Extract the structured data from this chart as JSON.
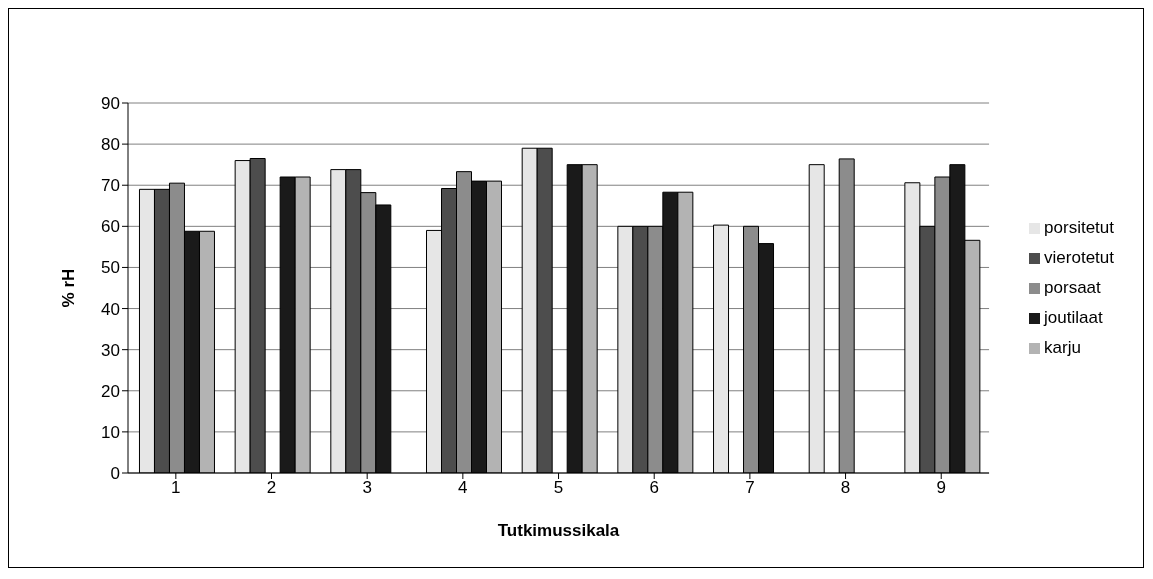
{
  "chart_data": {
    "type": "bar",
    "xlabel": "Tutkimussikala",
    "ylabel": "% rH",
    "categories": [
      "1",
      "2",
      "3",
      "4",
      "5",
      "6",
      "7",
      "8",
      "9"
    ],
    "series": [
      {
        "name": "porsitetut",
        "color": "#e6e6e6",
        "values": [
          69,
          76,
          73.8,
          59,
          79,
          60,
          60.3,
          75,
          70.6
        ]
      },
      {
        "name": "vierotetut",
        "color": "#4d4d4d",
        "values": [
          69,
          76.5,
          73.8,
          69.2,
          79,
          60,
          null,
          null,
          60
        ]
      },
      {
        "name": "porsaat",
        "color": "#8c8c8c",
        "values": [
          70.5,
          null,
          68.2,
          73.3,
          null,
          60,
          60,
          76.4,
          72
        ]
      },
      {
        "name": "joutilaat",
        "color": "#1a1a1a",
        "values": [
          58.8,
          72,
          65.2,
          71,
          75,
          68.3,
          55.8,
          null,
          75
        ]
      },
      {
        "name": "karju",
        "color": "#b3b3b3",
        "values": [
          58.8,
          72,
          null,
          71,
          75,
          68.3,
          null,
          null,
          56.6
        ]
      }
    ],
    "ylim": [
      0,
      90
    ],
    "yticks": [
      0,
      10,
      20,
      30,
      40,
      50,
      60,
      70,
      80,
      90
    ],
    "grid": "y",
    "legend": "right"
  }
}
